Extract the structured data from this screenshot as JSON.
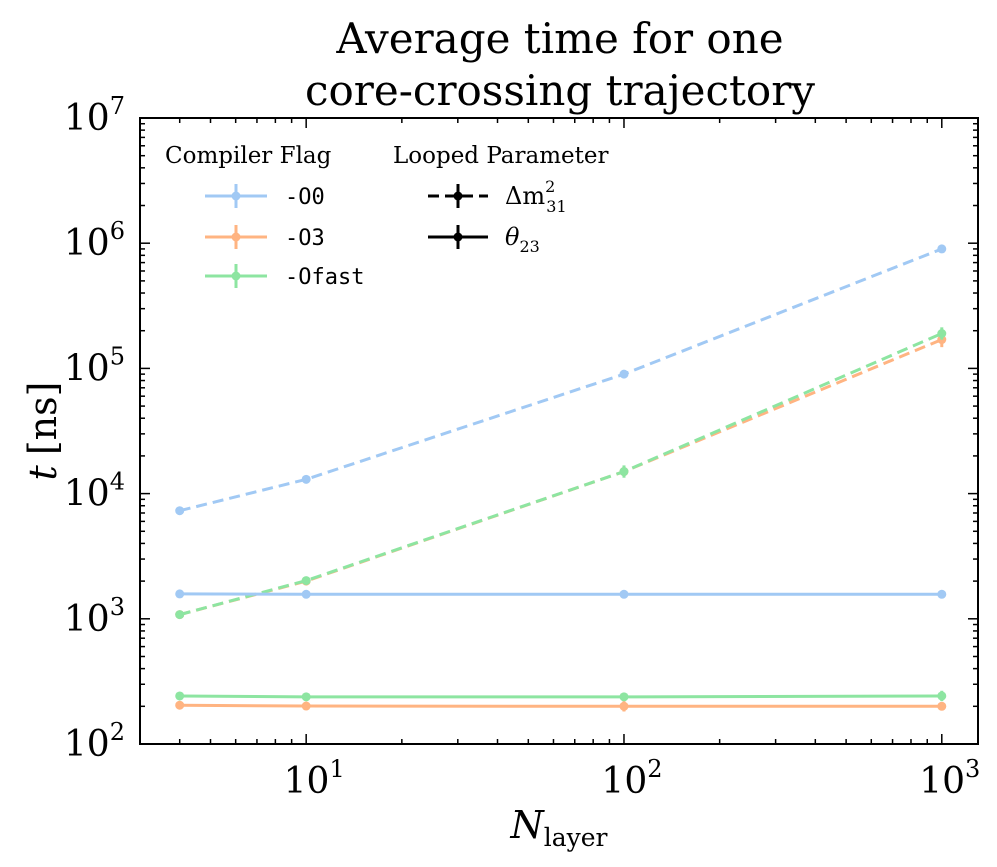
{
  "chart_data": {
    "type": "line",
    "title_lines": [
      "Average time for one",
      "core-crossing trajectory"
    ],
    "xlabel": {
      "main": "N",
      "sub": "layer"
    },
    "ylabel": {
      "main": "t",
      "unit": "[ns]"
    },
    "xscale": "log",
    "yscale": "log",
    "xlim": [
      3.0,
      1300
    ],
    "ylim": [
      100,
      10000000
    ],
    "x_ticks": [
      {
        "base": "10",
        "exp": "1",
        "value": 10
      },
      {
        "base": "10",
        "exp": "2",
        "value": 100
      },
      {
        "base": "10",
        "exp": "3",
        "value": 1000
      }
    ],
    "y_ticks": [
      {
        "base": "10",
        "exp": "2",
        "value": 100
      },
      {
        "base": "10",
        "exp": "3",
        "value": 1000
      },
      {
        "base": "10",
        "exp": "4",
        "value": 10000
      },
      {
        "base": "10",
        "exp": "5",
        "value": 100000
      },
      {
        "base": "10",
        "exp": "6",
        "value": 1000000
      },
      {
        "base": "10",
        "exp": "7",
        "value": 10000000
      }
    ],
    "x": [
      4,
      10,
      100,
      1000
    ],
    "colors": {
      "O0": "#a1c9f4",
      "O3": "#ffb482",
      "Ofast": "#8de5a1",
      "black": "#000000"
    },
    "series": [
      {
        "name": "-O0 dm31",
        "flag": "O0",
        "param": "dm31",
        "style": "dashed",
        "values": [
          7300,
          13000,
          90000,
          900000
        ],
        "errors": [
          0,
          0,
          0,
          0
        ]
      },
      {
        "name": "-O3 dm31",
        "flag": "O3",
        "param": "dm31",
        "style": "dashed",
        "values": [
          1080,
          2000,
          15000,
          170000
        ],
        "errors": [
          0,
          0,
          0,
          0.15
        ]
      },
      {
        "name": "-Ofast dm31",
        "flag": "Ofast",
        "param": "dm31",
        "style": "dashed",
        "values": [
          1080,
          2020,
          15000,
          190000
        ],
        "errors": [
          0,
          0,
          0.12,
          0.12
        ]
      },
      {
        "name": "-O0 theta23",
        "flag": "O0",
        "param": "theta23",
        "style": "solid",
        "values": [
          1580,
          1570,
          1570,
          1570
        ],
        "errors": [
          0,
          0,
          0,
          0.04
        ]
      },
      {
        "name": "-O3 theta23",
        "flag": "O3",
        "param": "theta23",
        "style": "solid",
        "values": [
          204,
          201,
          200,
          200
        ],
        "errors": [
          0,
          0,
          0.1,
          0.08
        ]
      },
      {
        "name": "-Ofast theta23",
        "flag": "Ofast",
        "param": "theta23",
        "style": "solid",
        "values": [
          242,
          238,
          238,
          242
        ],
        "errors": [
          0,
          0,
          0.04,
          0.1
        ]
      }
    ],
    "legend": {
      "placement": "top-left",
      "flag_title": "Compiler Flag",
      "param_title": "Looped Parameter",
      "flags": [
        {
          "key": "O0",
          "label": "-O0"
        },
        {
          "key": "O3",
          "label": "-O3"
        },
        {
          "key": "Ofast",
          "label": "-Ofast"
        }
      ],
      "params": [
        {
          "key": "dm31",
          "style": "dashed",
          "symbol": "Δm",
          "sup": "2",
          "sub": "31"
        },
        {
          "key": "theta23",
          "style": "solid",
          "symbol": "θ",
          "sup": "",
          "sub": "23"
        }
      ]
    }
  }
}
